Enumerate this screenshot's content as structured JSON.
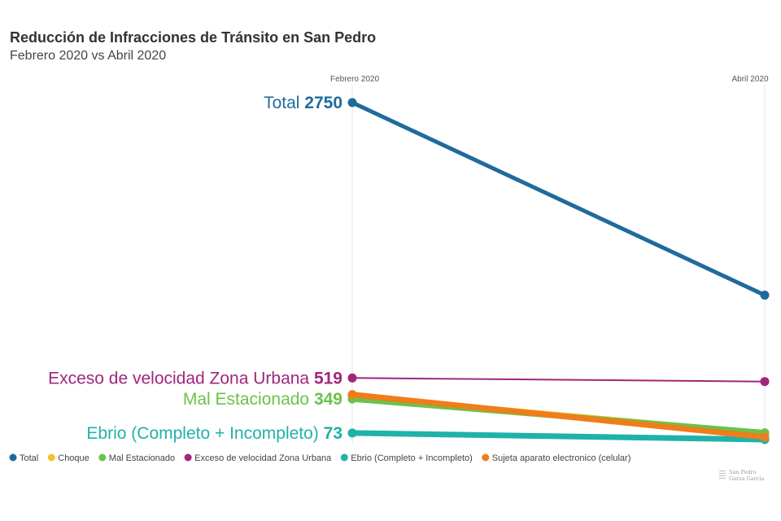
{
  "header": {
    "title": "Reducción de Infracciones de Tránsito en San Pedro",
    "subtitle": "Febrero 2020 vs Abril 2020"
  },
  "credit": {
    "line1": "San Pedro",
    "line2": "Garza García"
  },
  "chart_data": {
    "type": "line",
    "x": [
      "Febrero 2020",
      "Abril 2020"
    ],
    "ylim": [
      0,
      2750
    ],
    "grid": "vertical lines at each category",
    "legend_position": "bottom",
    "series": [
      {
        "name": "Total",
        "values": [
          2750,
          1190
        ],
        "color": "#1f6b9c",
        "start_label": {
          "text": "Total",
          "value": "2750"
        }
      },
      {
        "name": "Choque",
        "values": [
          370,
          70
        ],
        "color": "#f2c12e"
      },
      {
        "name": "Mal Estacionado",
        "values": [
          349,
          75
        ],
        "color": "#6cc24a",
        "start_label": {
          "text": "Mal Estacionado",
          "value": "349"
        }
      },
      {
        "name": "Exceso de velocidad Zona Urbana",
        "values": [
          519,
          490
        ],
        "color": "#a0267c",
        "start_label": {
          "text": "Exceso de velocidad Zona Urbana",
          "value": "519"
        }
      },
      {
        "name": "Ebrio (Completo + Incompleto)",
        "values": [
          73,
          20
        ],
        "color": "#1fb2a8",
        "start_label": {
          "text": "Ebrio (Completo + Incompleto)",
          "value": "73"
        }
      },
      {
        "name": "Sujeta aparato electronico (celular)",
        "values": [
          385,
          40
        ],
        "color": "#ef7d1a"
      }
    ]
  }
}
